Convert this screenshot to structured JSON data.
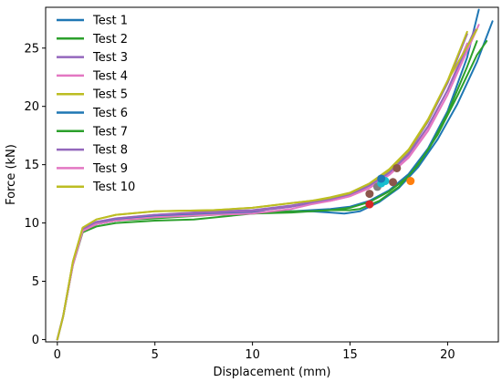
{
  "chart_data": {
    "type": "line",
    "title": "",
    "xlabel": "Displacement (mm)",
    "ylabel": "Force (kN)",
    "xlim": [
      -0.6,
      22.6
    ],
    "ylim": [
      -0.2,
      28.5
    ],
    "xticks": [
      0,
      5,
      10,
      15,
      20
    ],
    "yticks": [
      0,
      5,
      10,
      15,
      20,
      25
    ],
    "grid": false,
    "legend_position": "top-left",
    "series": [
      {
        "name": "Test 1",
        "color": "#1f77b4",
        "x": [
          0,
          0.3,
          0.8,
          1.3,
          2,
          3,
          5,
          8,
          10,
          12,
          13,
          14,
          15,
          16,
          17,
          18,
          19,
          20,
          21,
          21.6
        ],
        "y": [
          0,
          2,
          6.5,
          9.3,
          9.9,
          10.2,
          10.5,
          10.8,
          10.9,
          11,
          11.1,
          11.2,
          11.4,
          11.9,
          12.8,
          14.2,
          16.4,
          19.6,
          24.2,
          28.3
        ]
      },
      {
        "name": "Test 2",
        "color": "#2ca02c",
        "x": [
          0,
          0.3,
          0.8,
          1.3,
          2,
          3,
          5,
          8,
          10,
          12,
          13,
          14,
          15,
          16,
          17,
          18,
          19,
          20,
          21,
          21.5
        ],
        "y": [
          0,
          2,
          6.5,
          9.3,
          9.9,
          10.2,
          10.4,
          10.7,
          10.8,
          10.9,
          11,
          11.1,
          11.3,
          11.8,
          12.7,
          14,
          16.2,
          19.4,
          23.4,
          25.6
        ]
      },
      {
        "name": "Test 3",
        "color": "#9467bd",
        "x": [
          0,
          0.3,
          0.8,
          1.3,
          2,
          3,
          5,
          8,
          10,
          12,
          13,
          14,
          15,
          16,
          17,
          18,
          19,
          20,
          21
        ],
        "y": [
          0,
          2,
          6.6,
          9.4,
          10,
          10.3,
          10.7,
          11,
          11.1,
          11.5,
          11.8,
          12,
          12.4,
          13.2,
          14.4,
          16.1,
          18.7,
          22,
          26.2
        ]
      },
      {
        "name": "Test 4",
        "color": "#e377c2",
        "x": [
          0,
          0.3,
          0.8,
          1.3,
          2,
          3,
          5,
          8,
          10,
          12,
          13,
          14,
          15,
          16,
          17,
          18,
          19,
          20,
          21
        ],
        "y": [
          0,
          2,
          6.5,
          9.4,
          10.1,
          10.4,
          10.7,
          10.9,
          11,
          11.4,
          11.7,
          11.9,
          12.3,
          13,
          14.2,
          15.8,
          18.2,
          21.4,
          25.4
        ]
      },
      {
        "name": "Test 5",
        "color": "#bcbd22",
        "x": [
          0,
          0.3,
          0.8,
          1.3,
          2,
          3,
          5,
          8,
          10,
          12,
          13,
          14,
          15,
          16,
          17,
          18,
          19,
          20,
          21
        ],
        "y": [
          0,
          2,
          6.7,
          9.6,
          10.3,
          10.7,
          11,
          11.1,
          11.3,
          11.7,
          11.9,
          12.1,
          12.5,
          13.3,
          14.5,
          16.2,
          18.8,
          22.2,
          26.4
        ]
      },
      {
        "name": "Test 6",
        "color": "#1f77b4",
        "x": [
          0,
          0.3,
          0.8,
          1.3,
          2,
          3,
          5,
          8,
          10,
          12,
          13,
          14,
          14.7,
          15.5,
          16.5,
          17.5,
          18.5,
          19.5,
          20.5,
          21.5,
          22.3
        ],
        "y": [
          0,
          2,
          6.5,
          9.3,
          9.9,
          10.3,
          10.6,
          10.8,
          10.9,
          11,
          11,
          10.9,
          10.8,
          11,
          11.8,
          13,
          14.8,
          17.2,
          20.2,
          23.8,
          27.3
        ]
      },
      {
        "name": "Test 7",
        "color": "#2ca02c",
        "x": [
          0,
          0.3,
          0.8,
          1.3,
          2,
          3,
          5,
          7,
          10,
          12,
          13,
          14,
          15,
          15.5,
          16.5,
          17.5,
          18.5,
          19.5,
          20.5,
          21.5,
          22
        ],
        "y": [
          0,
          2,
          6.4,
          9.2,
          9.7,
          10,
          10.2,
          10.3,
          10.8,
          11,
          11,
          11.1,
          11.1,
          11.2,
          11.9,
          13.1,
          15,
          17.6,
          20.9,
          24.4,
          25.6
        ]
      },
      {
        "name": "Test 8",
        "color": "#9467bd",
        "x": [
          0,
          0.3,
          0.8,
          1.3,
          2,
          3,
          5,
          8,
          10,
          12,
          13,
          14,
          15,
          16,
          17,
          18,
          19,
          20,
          21.4
        ],
        "y": [
          0,
          2,
          6.6,
          9.5,
          10.1,
          10.4,
          10.7,
          10.9,
          11,
          11.4,
          11.7,
          12,
          12.4,
          13.2,
          14.3,
          15.9,
          18.3,
          21.4,
          26.6
        ]
      },
      {
        "name": "Test 9",
        "color": "#e377c2",
        "x": [
          0,
          0.3,
          0.8,
          1.3,
          2,
          3,
          5,
          8,
          10,
          12,
          13,
          14,
          15,
          16,
          17,
          18,
          19,
          20,
          21.6
        ],
        "y": [
          0,
          2,
          6.4,
          9.3,
          9.9,
          10.2,
          10.5,
          10.7,
          10.8,
          11.2,
          11.6,
          11.9,
          12.3,
          13,
          14.1,
          15.6,
          17.9,
          21,
          27
        ]
      },
      {
        "name": "Test 10",
        "color": "#bcbd22",
        "x": [
          0,
          0.3,
          0.8,
          1.3,
          2,
          3,
          5,
          8,
          10,
          12,
          13,
          14,
          15,
          16,
          17,
          18,
          19,
          20,
          21.5
        ],
        "y": [
          0,
          2,
          6.7,
          9.6,
          10.3,
          10.7,
          11,
          11.1,
          11.3,
          11.7,
          11.9,
          12.2,
          12.6,
          13.4,
          14.6,
          16.3,
          18.9,
          22.2,
          26.6
        ]
      }
    ],
    "markers": [
      {
        "x": 16.0,
        "y": 11.6,
        "color": "#d62728"
      },
      {
        "x": 18.1,
        "y": 13.6,
        "color": "#ff7f0e"
      },
      {
        "x": 16.0,
        "y": 12.5,
        "color": "#8c564b"
      },
      {
        "x": 16.4,
        "y": 13.1,
        "color": "#7f7f7f"
      },
      {
        "x": 16.6,
        "y": 13.4,
        "color": "#17becf"
      },
      {
        "x": 16.8,
        "y": 13.6,
        "color": "#17becf"
      },
      {
        "x": 16.6,
        "y": 13.8,
        "color": "#1f77b4"
      },
      {
        "x": 17.2,
        "y": 13.5,
        "color": "#8c564b"
      },
      {
        "x": 17.4,
        "y": 14.7,
        "color": "#8c564b"
      }
    ]
  }
}
